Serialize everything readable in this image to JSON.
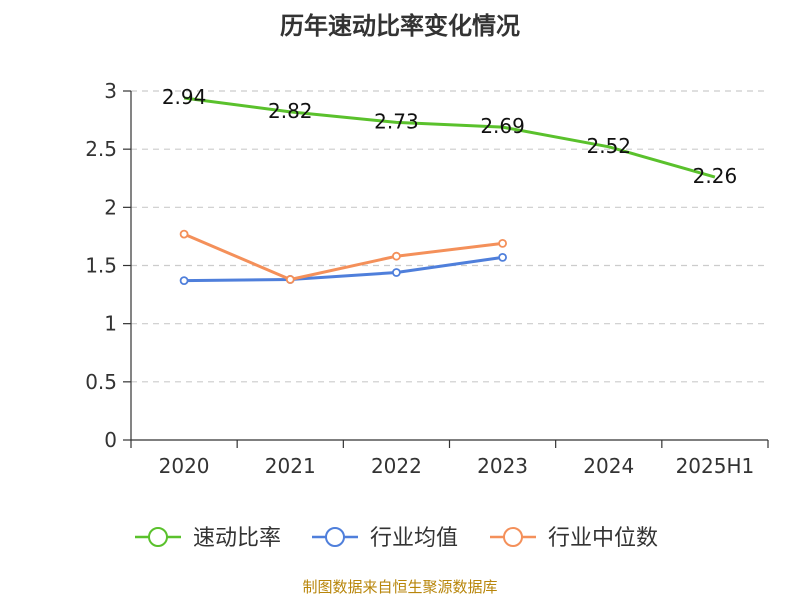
{
  "chart_data": {
    "type": "line",
    "title": "历年速动比率变化情况",
    "categories": [
      "2020",
      "2021",
      "2022",
      "2023",
      "2024",
      "2025H1"
    ],
    "ylim": [
      0,
      3
    ],
    "yticks": [
      "0",
      "0.5",
      "1",
      "1.5",
      "2",
      "2.5",
      "3"
    ],
    "grid": true,
    "legend_position": "bottom",
    "series": [
      {
        "name": "速动比率",
        "color": "#5ac12c",
        "values": [
          2.94,
          2.82,
          2.73,
          2.69,
          2.52,
          2.26
        ],
        "labels": [
          "2.94",
          "2.82",
          "2.73",
          "2.69",
          "2.52",
          "2.26"
        ]
      },
      {
        "name": "行业均值",
        "color": "#4f7fdb",
        "values": [
          1.37,
          1.38,
          1.44,
          1.57,
          null,
          null
        ]
      },
      {
        "name": "行业中位数",
        "color": "#f4905a",
        "values": [
          1.77,
          1.38,
          1.58,
          1.69,
          null,
          null
        ]
      }
    ]
  },
  "source_note": "制图数据来自恒生聚源数据库"
}
